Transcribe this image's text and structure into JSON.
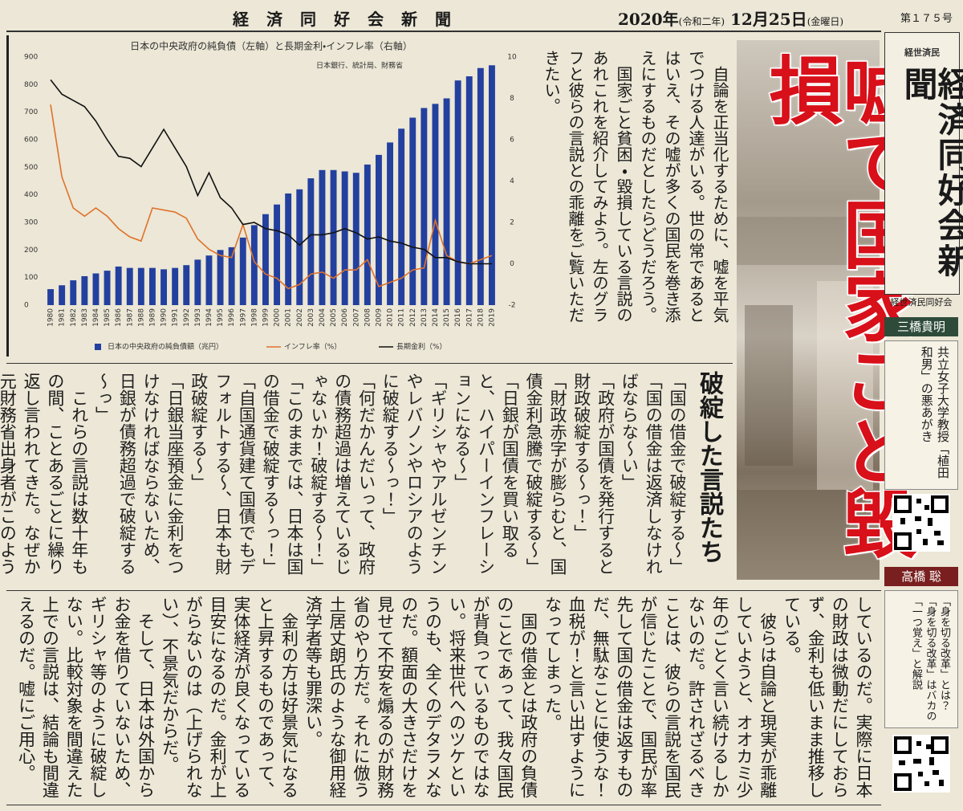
{
  "header": {
    "masthead": "経済同好会新聞",
    "date_year": "2020年",
    "date_era": "(令和二年)",
    "date_day": "12月25日",
    "date_weekday": "(金曜日)",
    "issue": "第１７５号"
  },
  "chart_data": {
    "type": "bar",
    "title": "日本の中央政府の純負債（左軸）と長期金利・インフレ率（右軸）",
    "source": "日本銀行、統計局、財務省",
    "categories": [
      "1980",
      "1981",
      "1982",
      "1983",
      "1984",
      "1985",
      "1986",
      "1987",
      "1988",
      "1989",
      "1990",
      "1991",
      "1992",
      "1993",
      "1994",
      "1995",
      "1996",
      "1997",
      "1998",
      "1999",
      "2000",
      "2001",
      "2002",
      "2003",
      "2004",
      "2005",
      "2006",
      "2007",
      "2008",
      "2009",
      "2010",
      "2011",
      "2012",
      "2013",
      "2014",
      "2015",
      "2016",
      "2017",
      "2018",
      "2019"
    ],
    "series": [
      {
        "name": "日本の中央政府の純負債額（兆円）",
        "type": "bar",
        "color": "#23409f",
        "axis": "y",
        "values": [
          58,
          72,
          90,
          105,
          115,
          125,
          140,
          135,
          135,
          135,
          130,
          135,
          145,
          165,
          180,
          200,
          210,
          245,
          290,
          330,
          365,
          405,
          420,
          460,
          490,
          490,
          485,
          480,
          510,
          545,
          590,
          640,
          680,
          715,
          730,
          750,
          815,
          830,
          860,
          870
        ]
      },
      {
        "name": "インフレ率（%）",
        "type": "line",
        "color": "#e0722b",
        "axis": "y2",
        "values": [
          7.7,
          4.2,
          2.7,
          2.3,
          2.7,
          2.3,
          1.7,
          1.3,
          1.1,
          2.7,
          2.6,
          2.5,
          2.2,
          1.2,
          0.7,
          0.4,
          0.3,
          1.9,
          0.1,
          -0.5,
          -0.7,
          -1.2,
          -1.0,
          -0.5,
          -0.4,
          -0.7,
          -0.3,
          -0.3,
          0.2,
          -1.1,
          -0.9,
          -0.7,
          -0.3,
          -0.2,
          2.1,
          0.4,
          0.1,
          0.0,
          0.2,
          0.4
        ]
      },
      {
        "name": "長期金利（%）",
        "type": "line",
        "color": "#111111",
        "axis": "y2",
        "values": [
          8.9,
          8.2,
          7.9,
          7.6,
          6.9,
          6.0,
          5.2,
          5.1,
          4.7,
          5.6,
          6.5,
          5.6,
          4.7,
          3.3,
          4.4,
          3.2,
          2.7,
          1.9,
          2.0,
          1.7,
          1.6,
          1.4,
          0.9,
          1.4,
          1.4,
          1.5,
          1.7,
          1.5,
          1.2,
          1.3,
          1.1,
          1.0,
          0.8,
          0.7,
          0.3,
          0.3,
          0.1,
          0.0,
          0.0,
          0.0
        ]
      }
    ],
    "ylim": [
      0,
      900
    ],
    "yticks": [
      0,
      100,
      200,
      300,
      400,
      500,
      600,
      700,
      800,
      900
    ],
    "y2lim": [
      -2,
      10
    ],
    "y2ticks": [
      -2,
      0,
      2,
      4,
      6,
      8,
      10
    ],
    "grid": false,
    "legend": "bottom"
  },
  "lead": {
    "paragraphs": [
      "自論を正当化するために、嘘を平気でつける人達がいる。世の常であるとはいえ、その嘘が多くの国民を巻き添えにするものだとしたらどうだろう。",
      "国家ごと貧困・毀損している言説のあれこれを紹介してみよう。左のグラフと彼らの言説との乖離をご覧いただきたい。"
    ]
  },
  "headline": "嘘で国家ごと毀損",
  "section": {
    "heading": "破綻した言説たち",
    "quotes": [
      "「国の借金で破綻する～」",
      "「国の借金は返済しなければならな～い」",
      "「政府が国債を発行すると財政破綻する～っ！」",
      "「財政赤字が膨らむと、国債金利急騰で破綻する～」",
      "「日銀が国債を買い取ると、ハイパーインフレーションになる～」",
      "「ギリシャやアルゼンチンやレバノンやロシアのように破綻する～っ！」",
      "「何だかんだいって、政府の債務超過は増えているじゃないか！破綻する～！」",
      "「このままでは、日本は国の借金で破綻する～っ！」",
      "「自国通貨建て国債でもデフォルトする～、日本も財政破綻する～」",
      "「日銀当座預金に金利をつけなければならないため、日銀が債務超過で破綻する～っ」"
    ],
    "paragraphs": [
      "これらの言説は数十年もの間、ことあるごとに繰り返し言われてきた。なぜか元財務省出身者がこのような言動を"
    ]
  },
  "bottom": {
    "paragraphs": [
      "しているのだ。実際に日本の財政は微動だにしておらず、金利も低いまま推移している。",
      "彼らは自論と現実が乖離していようと、オオカミ少年のごとく言い続けるしかないのだ。許されざるべきことは、彼らの言説を国民が信じたことで、国民が率先して国の借金は返すものだ、無駄なことに使うな！血税が！と言い出すようになってしまった。",
      "国の借金とは政府の負債のことであって、我々国民が背負っているものではない。将来世代へのツケというのも、全くのデタラメなのだ。額面の大きさだけを見せて不安を煽るのが財務省のやり方だ。それに倣う土居丈朗氏のような御用経済学者等も罪深い。",
      "金利の方は好景気になると上昇するものであって、実体経済が良くなっている目安になるのだ。金利が上がらないのは（上げられない）、不景気だからだ。",
      "そして、日本は外国からお金を借りていないため、ギリシャ等のように破綻しない。比較対象を間違えた上での言説は、結論も間違えるのだ。嘘にご用心。"
    ]
  },
  "sidebar": {
    "motto": "経世済民",
    "paper_name": "経済同好会新聞",
    "organization": "経世済民同好会",
    "items": [
      {
        "author": "三橋貴明",
        "text": "共立女子大学教授「植田和男」の悪あがき"
      },
      {
        "author": "高橋 聡",
        "text": "「身を切る改革」とは？「身を切る改革」はバカの「一つ覚え」と解説"
      }
    ]
  }
}
